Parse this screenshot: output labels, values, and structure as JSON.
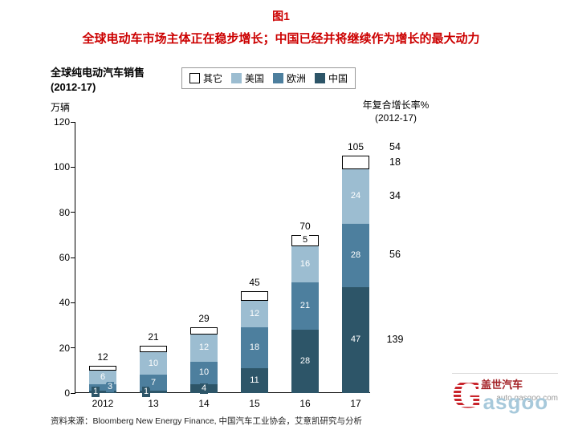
{
  "header": {
    "figure_label": "图1",
    "title": "全球电动车市场主体正在稳步增长；中国已经并将继续作为增长的最大动力"
  },
  "chart_title": {
    "line1": "全球纯电动汽车销售",
    "line2": "(2012-17)",
    "unit": "万辆"
  },
  "cagr_header": {
    "line1": "年复合增长率%",
    "line2": "(2012-17)"
  },
  "source": "资料来源：Bloomberg New Energy Finance, 中国汽车工业协会，艾意凯研究与分析",
  "logo": {
    "brand_cn": "盖世汽车",
    "url": "auto.gasgoo.com",
    "brand_g": "G",
    "brand_rest": "asgoo"
  },
  "colors": {
    "title_red": "#cc0000",
    "china": "#2d5568",
    "europe": "#4d7f9e",
    "usa": "#9cbdd1",
    "other": "#ffffff",
    "logo_blue": "#a7c9db",
    "logo_red": "#c9252c"
  },
  "chart_data": {
    "type": "bar",
    "stacked": true,
    "title": "全球纯电动汽车销售",
    "subtitle": "(2012-17)",
    "ylabel": "万辆",
    "categories": [
      "2012",
      "13",
      "14",
      "15",
      "16",
      "17"
    ],
    "series": [
      {
        "name": "中国",
        "color": "#2d5568",
        "text_color": "#ffffff",
        "values": [
          1,
          1,
          4,
          11,
          28,
          47
        ]
      },
      {
        "name": "欧洲",
        "color": "#4d7f9e",
        "text_color": "#ffffff",
        "values": [
          3,
          7,
          10,
          18,
          21,
          28
        ]
      },
      {
        "name": "美国",
        "color": "#9cbdd1",
        "text_color": "#ffffff",
        "values": [
          6,
          10,
          12,
          12,
          16,
          24
        ]
      },
      {
        "name": "其它",
        "color": "#ffffff",
        "text_color": "#000000",
        "values": [
          2,
          3,
          3,
          4,
          5,
          6
        ]
      }
    ],
    "show_segment_labels": [
      [
        true,
        true,
        true,
        true,
        true,
        true
      ],
      [
        true,
        true,
        true,
        true,
        true,
        true
      ],
      [
        true,
        true,
        true,
        true,
        true,
        true
      ],
      [
        false,
        false,
        false,
        false,
        true,
        false
      ]
    ],
    "totals": [
      12,
      21,
      29,
      45,
      70,
      105
    ],
    "ylim": [
      0,
      120
    ],
    "yticks": [
      120,
      100,
      80,
      60,
      40,
      20,
      0
    ],
    "legend_order": [
      "其它",
      "美国",
      "欧洲",
      "中国"
    ],
    "legend_position": "top",
    "grid": false,
    "cagr": {
      "total": "54",
      "by_series": [
        {
          "name": "其它",
          "value": "18"
        },
        {
          "name": "美国",
          "value": "34"
        },
        {
          "name": "欧洲",
          "value": "56"
        },
        {
          "name": "中国",
          "value": "139"
        }
      ]
    }
  }
}
